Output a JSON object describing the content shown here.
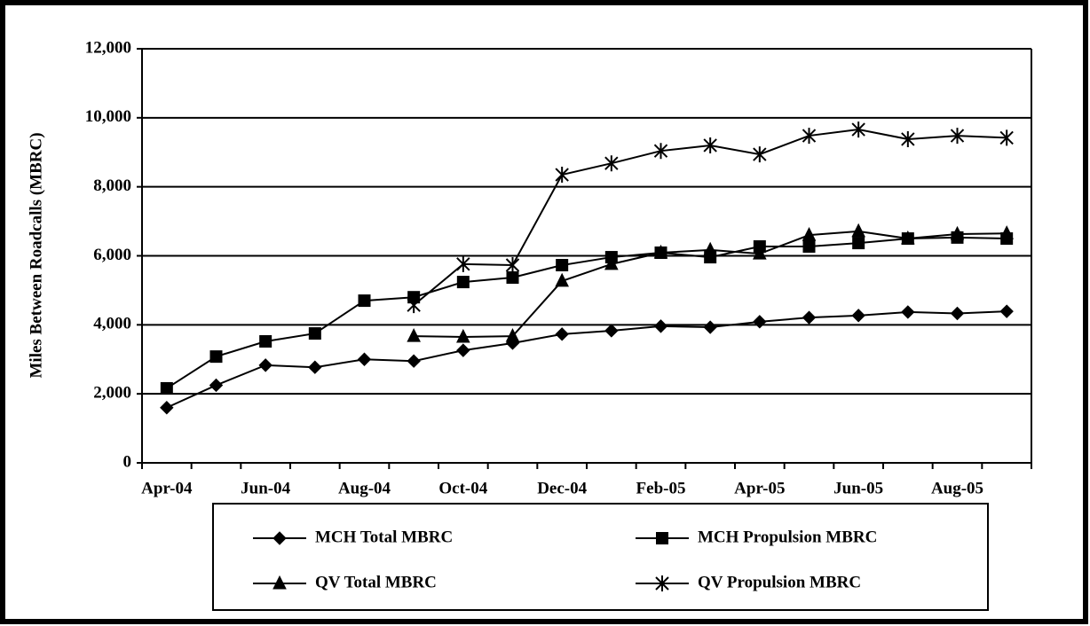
{
  "chart_data": {
    "type": "line",
    "y_label": "Miles Between Roadcalls (MBRC)",
    "categories": [
      "Apr-04",
      null,
      "Jun-04",
      null,
      "Aug-04",
      null,
      "Oct-04",
      null,
      "Dec-04",
      null,
      "Feb-05",
      null,
      "Apr-05",
      null,
      "Jun-05",
      null,
      "Aug-05",
      null
    ],
    "series": [
      {
        "name": "MCH Total MBRC",
        "color": "#000000",
        "marker": "diamond",
        "values": [
          1600,
          2250,
          2830,
          2770,
          3000,
          2950,
          3260,
          3470,
          3730,
          3830,
          3960,
          3930,
          4090,
          4210,
          4270,
          4370,
          4330,
          4390
        ]
      },
      {
        "name": "MCH Propulsion MBRC",
        "color": "#000000",
        "marker": "square",
        "values": [
          2160,
          3080,
          3520,
          3750,
          4700,
          4800,
          5240,
          5370,
          5730,
          5960,
          6090,
          5960,
          6270,
          6270,
          6370,
          6500,
          6530,
          6500
        ]
      },
      {
        "name": "QV Total MBRC",
        "color": "#000000",
        "marker": "triangle",
        "values": [
          null,
          null,
          null,
          null,
          null,
          3670,
          3650,
          3670,
          5270,
          5760,
          6090,
          6170,
          6060,
          6600,
          6710,
          6500,
          6630,
          6650
        ]
      },
      {
        "name": "QV Propulsion MBRC",
        "color": "#000000",
        "marker": "star",
        "values": [
          null,
          null,
          null,
          null,
          null,
          4570,
          5760,
          5730,
          8350,
          8680,
          9040,
          9200,
          8940,
          9480,
          9660,
          9380,
          9480,
          9420
        ]
      }
    ],
    "ylim": [
      0,
      12000
    ],
    "yticks": [
      0,
      {
        "value": 2000,
        "label": "2,000"
      },
      {
        "value": 4000,
        "label": "4,000"
      },
      {
        "value": 6000,
        "label": "6,000"
      },
      {
        "value": 8000,
        "label": "8,000"
      },
      {
        "value": 10000,
        "label": "10,000"
      },
      {
        "value": 12000,
        "label": "12,000"
      }
    ],
    "grid": true,
    "legend": "bottom"
  }
}
